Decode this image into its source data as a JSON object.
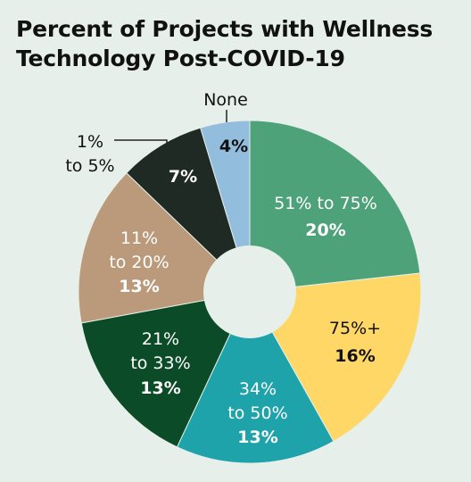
{
  "title_line1": "Percent of Projects with Wellness",
  "title_line2": "Technology Post-COVID-19",
  "chart_data": {
    "type": "pie",
    "title": "Percent of Projects with Wellness Technology Post-COVID-19",
    "slices": [
      {
        "label": "51% to 75%",
        "value": 20,
        "value_label": "20%",
        "color": "#4ea27a",
        "text_color": "#ffffff",
        "pct_color": "#ffffff"
      },
      {
        "label": "75%+",
        "value": 16,
        "value_label": "16%",
        "color": "#fed766",
        "text_color": "#111111",
        "pct_color": "#111111"
      },
      {
        "label": "34% to 50%",
        "value": 13,
        "value_label": "13%",
        "color": "#1fa3aa",
        "text_color": "#ffffff",
        "pct_color": "#ffffff"
      },
      {
        "label": "21% to 33%",
        "value": 13,
        "value_label": "13%",
        "color": "#0b4b27",
        "text_color": "#ffffff",
        "pct_color": "#ffffff"
      },
      {
        "label": "11% to 20%",
        "value": 13,
        "value_label": "13%",
        "color": "#bb9a7b",
        "text_color": "#ffffff",
        "pct_color": "#ffffff"
      },
      {
        "label": "1% to 5%",
        "value": 7,
        "value_label": "7%",
        "color": "#1f2a24",
        "text_color": "#111111",
        "pct_color": "#ffffff"
      },
      {
        "label": "None",
        "value": 4,
        "value_label": "4%",
        "color": "#93bddd",
        "text_color": "#111111",
        "pct_color": "#111111"
      }
    ]
  }
}
